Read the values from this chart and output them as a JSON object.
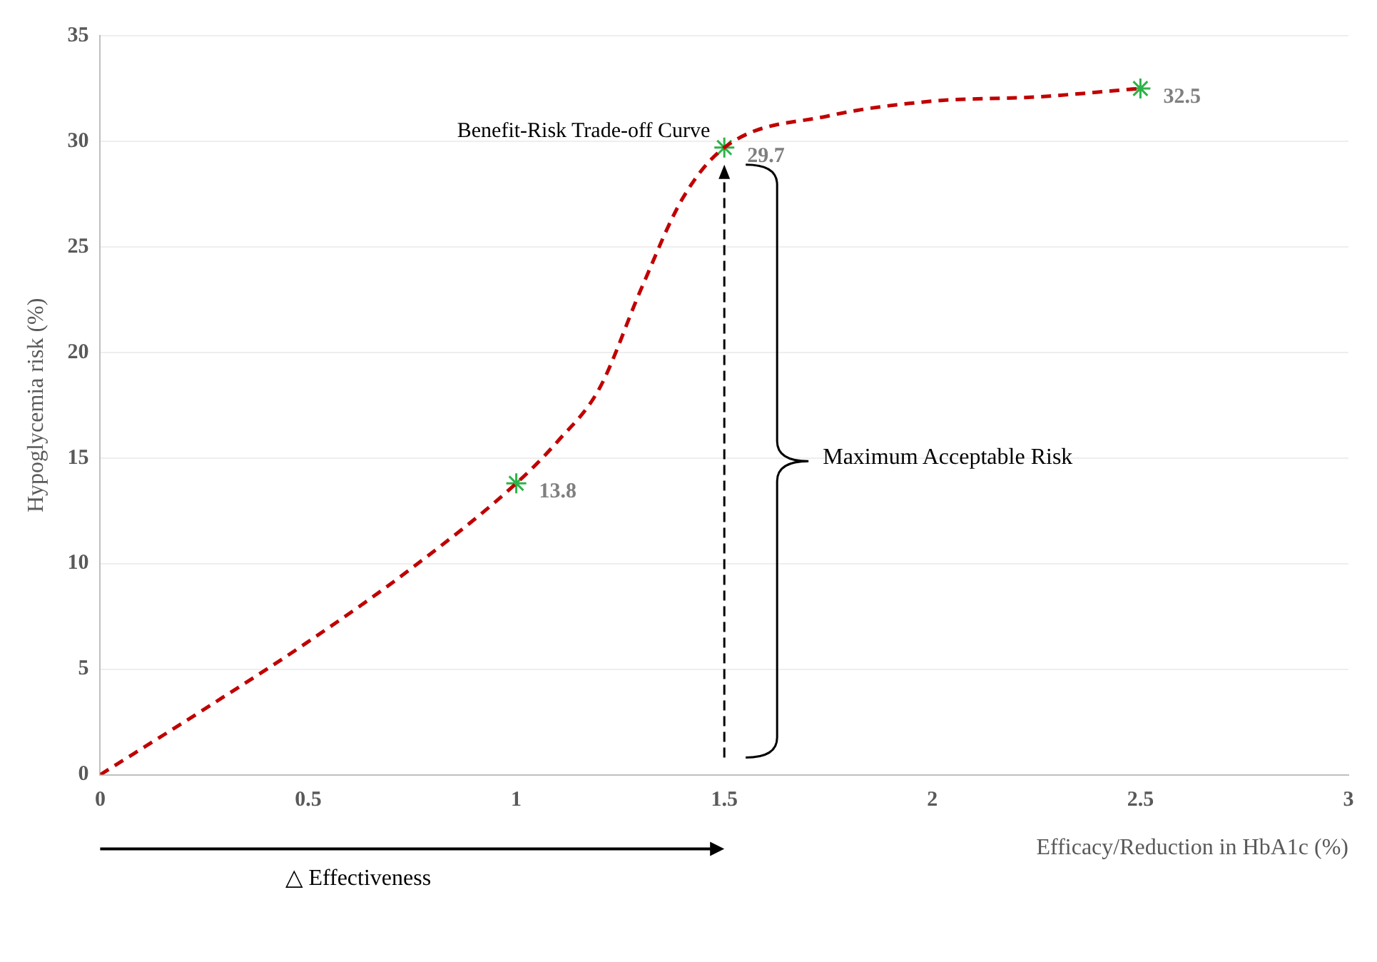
{
  "chart_data": {
    "type": "line",
    "xlabel": "Efficacy/Reduction in HbA1c (%)",
    "ylabel": "Hypoglycemia risk (%)",
    "xlim": [
      0,
      3
    ],
    "xticks": [
      0,
      0.5,
      1,
      1.5,
      2,
      2.5,
      3
    ],
    "ylim": [
      0,
      35
    ],
    "yticks": [
      0,
      5,
      10,
      15,
      20,
      25,
      30,
      35
    ],
    "grid": "y",
    "legend": false,
    "series": [
      {
        "color": "#c00000",
        "line_style": "dashed",
        "marker": "none",
        "x": [
          0,
          0.25,
          0.5,
          0.75,
          1,
          1.1,
          1.2,
          1.3,
          1.4,
          1.5,
          1.75,
          2,
          2.25,
          2.5
        ],
        "values": [
          0,
          3.1,
          6.3,
          9.8,
          13.8,
          15.8,
          18.3,
          23,
          27.3,
          29.7,
          31.2,
          31.9,
          32.1,
          32.5
        ]
      },
      {
        "type": "scatter",
        "color": "#2db34a",
        "marker": "cross",
        "x": [
          1,
          1.5,
          2.5
        ],
        "values": [
          13.8,
          29.7,
          32.5
        ],
        "value_labels": [
          "13.8",
          "29.7",
          "32.5"
        ]
      }
    ],
    "annotations": [
      {
        "text": "Benefit-Risk Trade-off Curve",
        "x": 1.5,
        "y": 29.7
      },
      "Maximum Acceptable Risk",
      "△ Effectiveness"
    ]
  }
}
